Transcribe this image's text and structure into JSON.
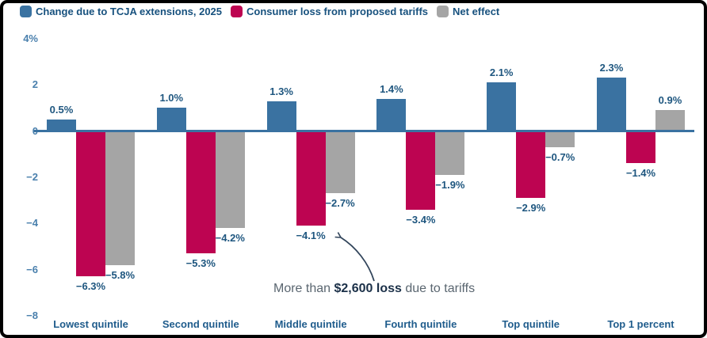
{
  "legend": {
    "items": [
      {
        "key": "tcja",
        "label": "Change due to TCJA extensions, 2025",
        "color": "#3A72A1"
      },
      {
        "key": "tariff",
        "label": "Consumer loss from proposed tariffs",
        "color": "#BD0451"
      },
      {
        "key": "net",
        "label": "Net effect",
        "color": "#A5A5A5"
      }
    ]
  },
  "chart_data": {
    "type": "bar",
    "categories": [
      "Lowest quintile",
      "Second quintile",
      "Middle quintile",
      "Fourth quintile",
      "Top quintile",
      "Top 1 percent"
    ],
    "series": [
      {
        "key": "tcja",
        "name": "Change due to TCJA extensions, 2025",
        "color": "#3A72A1",
        "values": [
          0.5,
          1.0,
          1.3,
          1.4,
          2.1,
          2.3
        ],
        "labels": [
          "0.5%",
          "1.0%",
          "1.3%",
          "1.4%",
          "2.1%",
          "2.3%"
        ]
      },
      {
        "key": "tariff",
        "name": "Consumer loss from proposed tariffs",
        "color": "#BD0451",
        "values": [
          -6.3,
          -5.3,
          -4.1,
          -3.4,
          -2.9,
          -1.4
        ],
        "labels": [
          "−6.3%",
          "−5.3%",
          "−4.1%",
          "−3.4%",
          "−2.9%",
          "−1.4%"
        ]
      },
      {
        "key": "net",
        "name": "Net effect",
        "color": "#A5A5A5",
        "values": [
          -5.8,
          -4.2,
          -2.7,
          -1.9,
          -0.7,
          0.9
        ],
        "labels": [
          "−5.8%",
          "−4.2%",
          "−2.7%",
          "−1.9%",
          "−0.7%",
          "0.9%"
        ]
      }
    ],
    "yticks": [
      {
        "value": 4,
        "label": "4%"
      },
      {
        "value": 2,
        "label": "2"
      },
      {
        "value": 0,
        "label": "0"
      },
      {
        "value": -2,
        "label": "−2"
      },
      {
        "value": -4,
        "label": "−4"
      },
      {
        "value": -6,
        "label": "−6"
      },
      {
        "value": -8,
        "label": "−8"
      }
    ],
    "ylim": [
      -8,
      4
    ],
    "grid": false,
    "legend_position": "top-left",
    "annotation": {
      "prefix": "More than ",
      "bold": "$2,600 loss",
      "suffix": " due to tariffs",
      "points_to": "−4.1% (Middle quintile, Consumer loss from proposed tariffs)"
    }
  },
  "colors": {
    "axis_line": "#3A72A1",
    "tick_label": "#4A80AD",
    "value_label": "#1E567F",
    "category_label": "#1F5C8C",
    "legend_label": "#17517E",
    "annotation_normal": "#5A6670",
    "annotation_bold": "#1B3048",
    "arrow": "#32455B",
    "frame_border": "#000000",
    "background": "#FFFFFF"
  }
}
